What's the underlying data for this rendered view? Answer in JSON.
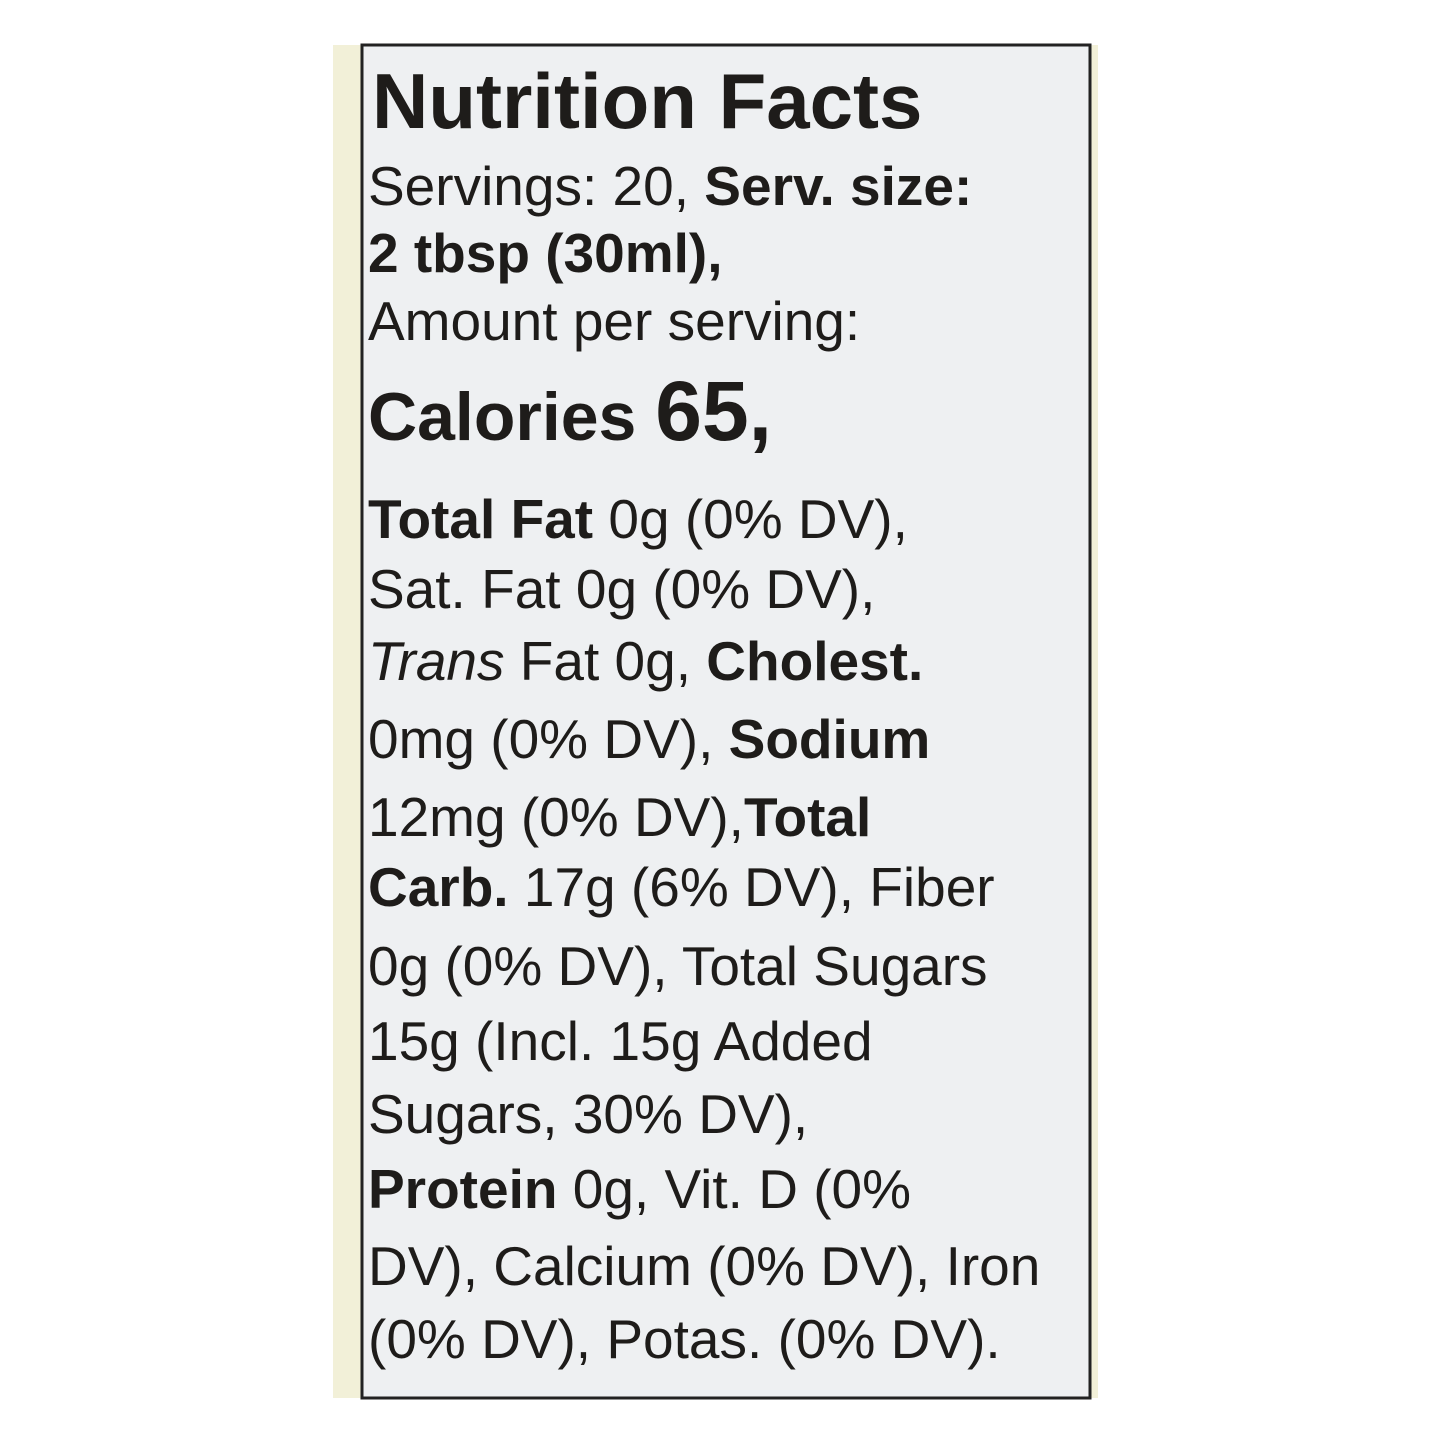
{
  "label": {
    "lines": [
      [
        {
          "text": "Nutrition Facts",
          "style": "title"
        }
      ],
      [
        {
          "text": "Servings: 20, ",
          "style": "regular"
        },
        {
          "text": "Serv. size:",
          "style": "bold"
        }
      ],
      [
        {
          "text": "2 tbsp (30ml),",
          "style": "bold"
        }
      ],
      [
        {
          "text": "Amount per serving:",
          "style": "regular"
        }
      ],
      [
        {
          "text": "Calories ",
          "style": "calories"
        },
        {
          "text": "65,",
          "style": "calories-value"
        }
      ],
      [
        {
          "text": "Total Fat",
          "style": "bold"
        },
        {
          "text": " 0g (0% DV),",
          "style": "regular"
        }
      ],
      [
        {
          "text": "Sat. Fat 0g (0% DV),",
          "style": "regular"
        }
      ],
      [
        {
          "text": "Trans",
          "style": "italic"
        },
        {
          "text": " Fat 0g, ",
          "style": "regular"
        },
        {
          "text": "Cholest.",
          "style": "bold"
        }
      ],
      [
        {
          "text": "0mg (0% DV), ",
          "style": "regular"
        },
        {
          "text": "Sodium",
          "style": "bold"
        }
      ],
      [
        {
          "text": "12mg (0% DV),",
          "style": "regular"
        },
        {
          "text": "Total",
          "style": "bold"
        }
      ],
      [
        {
          "text": "Carb.",
          "style": "bold"
        },
        {
          "text": " 17g (6% DV), Fiber",
          "style": "regular"
        }
      ],
      [
        {
          "text": "0g (0% DV), Total Sugars",
          "style": "regular"
        }
      ],
      [
        {
          "text": "15g (Incl. 15g Added",
          "style": "regular"
        }
      ],
      [
        {
          "text": "Sugars, 30% DV),",
          "style": "regular"
        }
      ],
      [
        {
          "text": "Protein",
          "style": "bold"
        },
        {
          "text": " 0g, Vit. D (0%",
          "style": "regular"
        }
      ],
      [
        {
          "text": "DV), Calcium (0% DV), Iron",
          "style": "regular"
        }
      ],
      [
        {
          "text": "(0% DV), Potas. (0% DV).",
          "style": "regular"
        }
      ]
    ]
  }
}
